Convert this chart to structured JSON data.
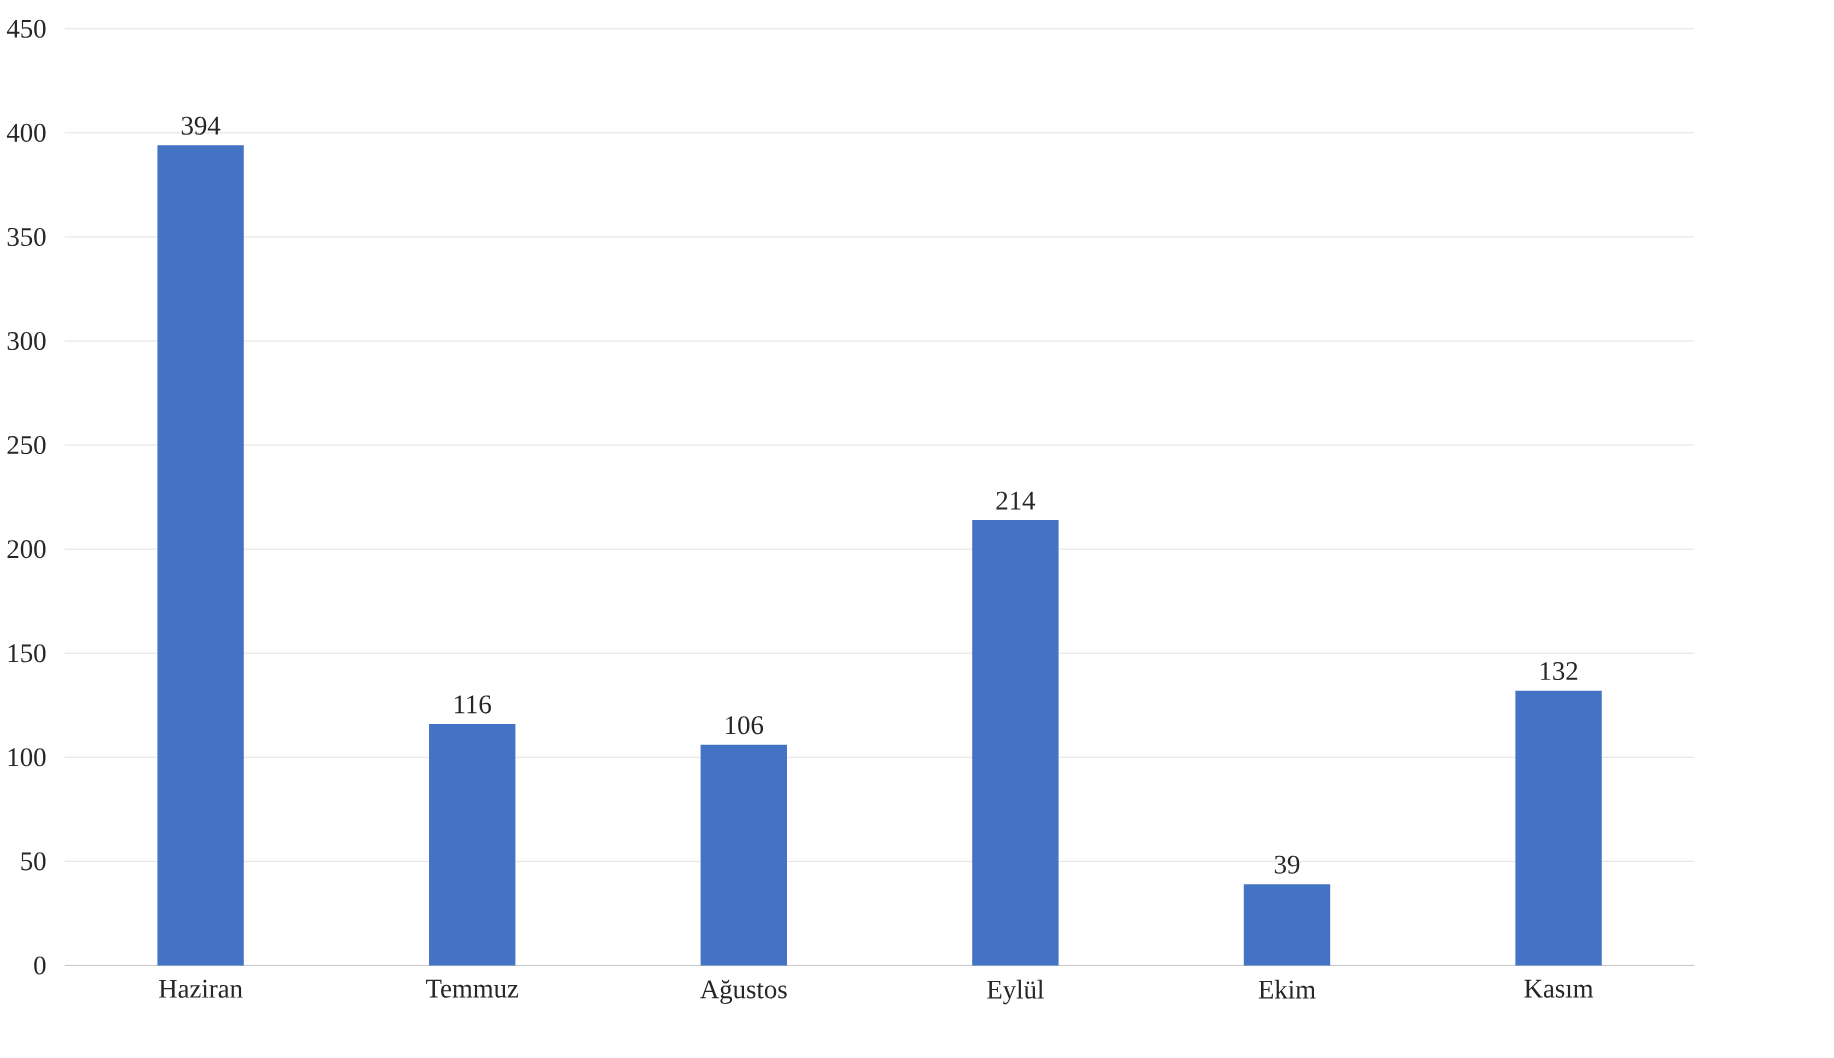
{
  "chart_data": {
    "type": "bar",
    "categories": [
      "Haziran",
      "Temmuz",
      "Ağustos",
      "Eylül",
      "Ekim",
      "Kasım"
    ],
    "values": [
      394,
      116,
      106,
      214,
      39,
      132
    ],
    "color": "#4472c4",
    "ylim": [
      0,
      450
    ],
    "yticks": [
      0,
      50,
      100,
      150,
      200,
      250,
      300,
      350,
      400,
      450
    ],
    "grid": "y",
    "data_labels": true
  }
}
